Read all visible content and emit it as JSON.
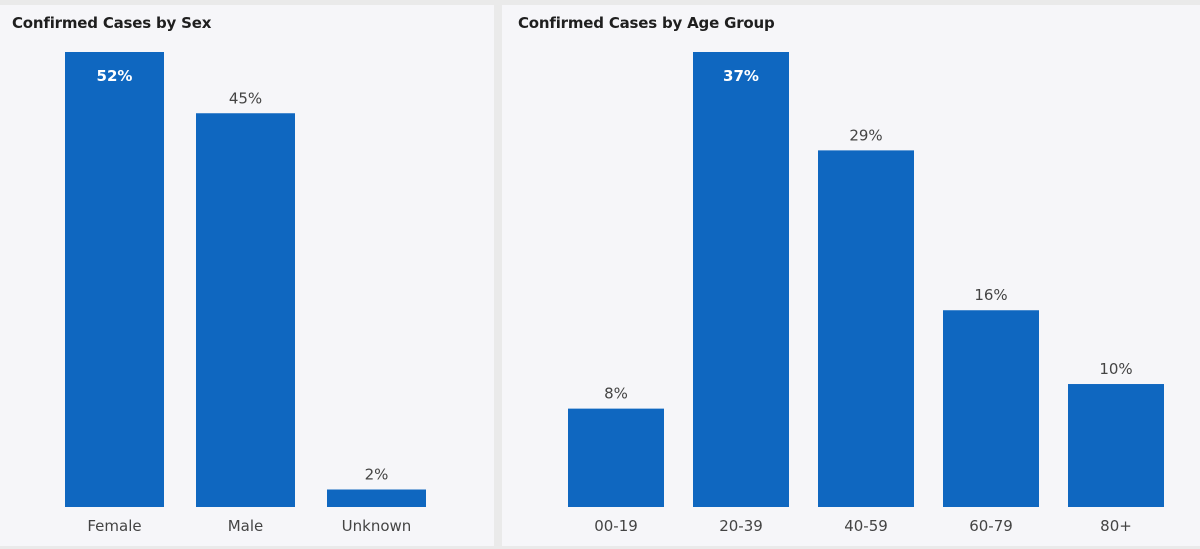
{
  "colors": {
    "bar": "#0f67c0",
    "label_dark": "#444444",
    "label_inside": "#ffffff",
    "panel_bg": "#f6f6f9"
  },
  "charts": {
    "sex": {
      "title": "Confirmed Cases by Sex",
      "chart_data": {
        "type": "bar",
        "title": "Confirmed Cases by Sex",
        "categories": [
          "Female",
          "Male",
          "Unknown"
        ],
        "values": [
          52,
          45,
          2
        ],
        "value_labels": [
          "52%",
          "45%",
          "2%"
        ],
        "ylim": [
          0,
          52
        ],
        "grid": false
      }
    },
    "age": {
      "title": "Confirmed Cases by Age Group",
      "chart_data": {
        "type": "bar",
        "title": "Confirmed Cases by Age Group",
        "categories": [
          "00-19",
          "20-39",
          "40-59",
          "60-79",
          "80+"
        ],
        "values": [
          8,
          37,
          29,
          16,
          10
        ],
        "value_labels": [
          "8%",
          "37%",
          "29%",
          "16%",
          "10%"
        ],
        "ylim": [
          0,
          37
        ],
        "grid": false
      }
    }
  }
}
